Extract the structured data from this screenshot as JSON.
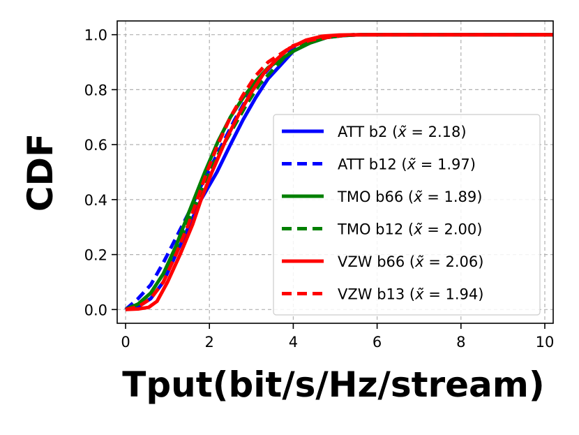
{
  "chart_data": {
    "type": "line",
    "xlabel": "Tput(bit/s/Hz/stream)",
    "ylabel": "CDF",
    "xlim": [
      -0.2,
      10.2
    ],
    "ylim": [
      -0.05,
      1.05
    ],
    "xticks": [
      "0",
      "2",
      "4",
      "6",
      "8",
      "10"
    ],
    "yticks": [
      "0.0",
      "0.2",
      "0.4",
      "0.6",
      "0.8",
      "1.0"
    ],
    "grid": true,
    "legend_position": "center-right",
    "series": [
      {
        "name": "ATT b2 ($\\tilde{x} = 2.18$)",
        "label_prefix": "ATT b2",
        "label_value": "2.18",
        "color": "#0000ff",
        "style": "solid",
        "x": [
          0,
          0.3,
          0.6,
          0.9,
          1.2,
          1.5,
          1.8,
          2.18,
          2.5,
          2.8,
          3.1,
          3.4,
          3.7,
          4.0,
          4.4,
          4.8,
          5.2,
          5.6,
          10.2
        ],
        "y": [
          0,
          0.01,
          0.04,
          0.1,
          0.2,
          0.3,
          0.4,
          0.5,
          0.6,
          0.69,
          0.77,
          0.84,
          0.89,
          0.94,
          0.97,
          0.99,
          0.997,
          1.0,
          1.0
        ]
      },
      {
        "name": "ATT b12 ($\\tilde{x} = 1.97$)",
        "label_prefix": "ATT b12",
        "label_value": "1.97",
        "color": "#0000ff",
        "style": "dashed",
        "x": [
          0,
          0.3,
          0.6,
          0.9,
          1.2,
          1.5,
          1.8,
          1.97,
          2.3,
          2.6,
          2.9,
          3.2,
          3.5,
          3.8,
          4.2,
          4.6,
          5.0,
          5.5,
          10.2
        ],
        "y": [
          0,
          0.04,
          0.09,
          0.17,
          0.26,
          0.35,
          0.45,
          0.5,
          0.6,
          0.69,
          0.77,
          0.84,
          0.89,
          0.93,
          0.97,
          0.99,
          0.997,
          1.0,
          1.0
        ]
      },
      {
        "name": "TMO b66 ($\\tilde{x} = 1.89$)",
        "label_prefix": "TMO b66",
        "label_value": "1.89",
        "color": "#008000",
        "style": "solid",
        "x": [
          0,
          0.3,
          0.6,
          0.9,
          1.2,
          1.5,
          1.89,
          2.2,
          2.5,
          2.8,
          3.1,
          3.4,
          3.7,
          4.0,
          4.4,
          4.8,
          5.2,
          5.6,
          10.2
        ],
        "y": [
          0,
          0.02,
          0.06,
          0.13,
          0.23,
          0.35,
          0.5,
          0.61,
          0.7,
          0.77,
          0.83,
          0.88,
          0.91,
          0.94,
          0.97,
          0.99,
          0.997,
          1.0,
          1.0
        ]
      },
      {
        "name": "TMO b12 ($\\tilde{x} = 2.00$)",
        "label_prefix": "TMO b12",
        "label_value": "2.00",
        "color": "#008000",
        "style": "dashed",
        "x": [
          0,
          0.3,
          0.6,
          0.9,
          1.2,
          1.5,
          1.8,
          2.0,
          2.3,
          2.6,
          2.9,
          3.2,
          3.5,
          3.8,
          4.2,
          4.6,
          5.0,
          5.5,
          10.2
        ],
        "y": [
          0,
          0.02,
          0.06,
          0.13,
          0.22,
          0.32,
          0.43,
          0.5,
          0.59,
          0.67,
          0.75,
          0.82,
          0.87,
          0.92,
          0.96,
          0.985,
          0.997,
          1.0,
          1.0
        ]
      },
      {
        "name": "VZW b66 ($\\tilde{x} = 2.06$)",
        "label_prefix": "VZW b66",
        "label_value": "2.06",
        "color": "#ff0000",
        "style": "solid",
        "x": [
          0,
          0.3,
          0.55,
          0.75,
          1.0,
          1.3,
          1.6,
          1.8,
          2.06,
          2.4,
          2.7,
          3.0,
          3.3,
          3.6,
          3.9,
          4.3,
          4.7,
          5.1,
          5.6,
          10.2
        ],
        "y": [
          0,
          0.002,
          0.008,
          0.03,
          0.1,
          0.2,
          0.31,
          0.4,
          0.5,
          0.62,
          0.71,
          0.79,
          0.86,
          0.91,
          0.95,
          0.98,
          0.995,
          0.999,
          1.0,
          1.0
        ]
      },
      {
        "name": "VZW b13 ($\\tilde{x} = 1.94$)",
        "label_prefix": "VZW b13",
        "label_value": "1.94",
        "color": "#ff0000",
        "style": "dashed",
        "x": [
          0,
          0.3,
          0.6,
          0.9,
          1.2,
          1.5,
          1.94,
          2.2,
          2.5,
          2.8,
          3.1,
          3.4,
          3.7,
          4.0,
          4.4,
          4.8,
          5.2,
          5.6,
          10.2
        ],
        "y": [
          0,
          0.01,
          0.04,
          0.1,
          0.2,
          0.31,
          0.5,
          0.6,
          0.7,
          0.78,
          0.85,
          0.9,
          0.93,
          0.96,
          0.98,
          0.99,
          0.998,
          1.0,
          1.0
        ]
      }
    ]
  }
}
